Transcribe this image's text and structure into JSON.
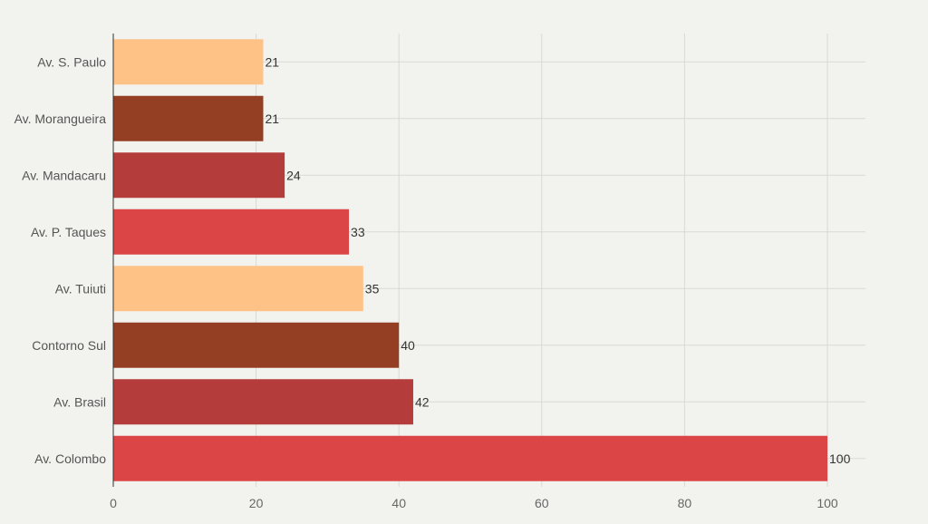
{
  "chart_data": {
    "type": "bar",
    "orientation": "horizontal",
    "title": "",
    "xlabel": "",
    "ylabel": "",
    "xlim": [
      0,
      105
    ],
    "xticks": [
      0,
      20,
      40,
      60,
      80,
      100
    ],
    "grid": true,
    "categories": [
      "Av. S. Paulo",
      "Av. Morangueira",
      "Av. Mandacaru",
      "Av. P. Taques",
      "Av. Tuiuti",
      "Contorno Sul",
      "Av. Brasil",
      "Av. Colombo"
    ],
    "values": [
      21,
      21,
      24,
      33,
      35,
      40,
      42,
      100
    ],
    "colors": [
      "#fec287",
      "#943f24",
      "#b43c3a",
      "#db4546",
      "#fec287",
      "#943f24",
      "#b43c3a",
      "#db4546"
    ]
  }
}
